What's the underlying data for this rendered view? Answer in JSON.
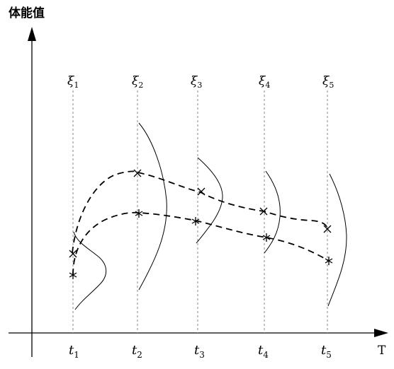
{
  "diagram": {
    "y_axis_label": "体能值",
    "x_axis_label": "T",
    "time_points": [
      {
        "t": "t",
        "sub": "1",
        "xi": "ξ",
        "xi_sub": "1"
      },
      {
        "t": "t",
        "sub": "2",
        "xi": "ξ",
        "xi_sub": "2"
      },
      {
        "t": "t",
        "sub": "3",
        "xi": "ξ",
        "xi_sub": "3"
      },
      {
        "t": "t",
        "sub": "4",
        "xi": "ξ",
        "xi_sub": "4"
      },
      {
        "t": "t",
        "sub": "5",
        "xi": "ξ",
        "xi_sub": "5"
      }
    ],
    "upper_series_marker": "×",
    "lower_series_marker": "*"
  }
}
